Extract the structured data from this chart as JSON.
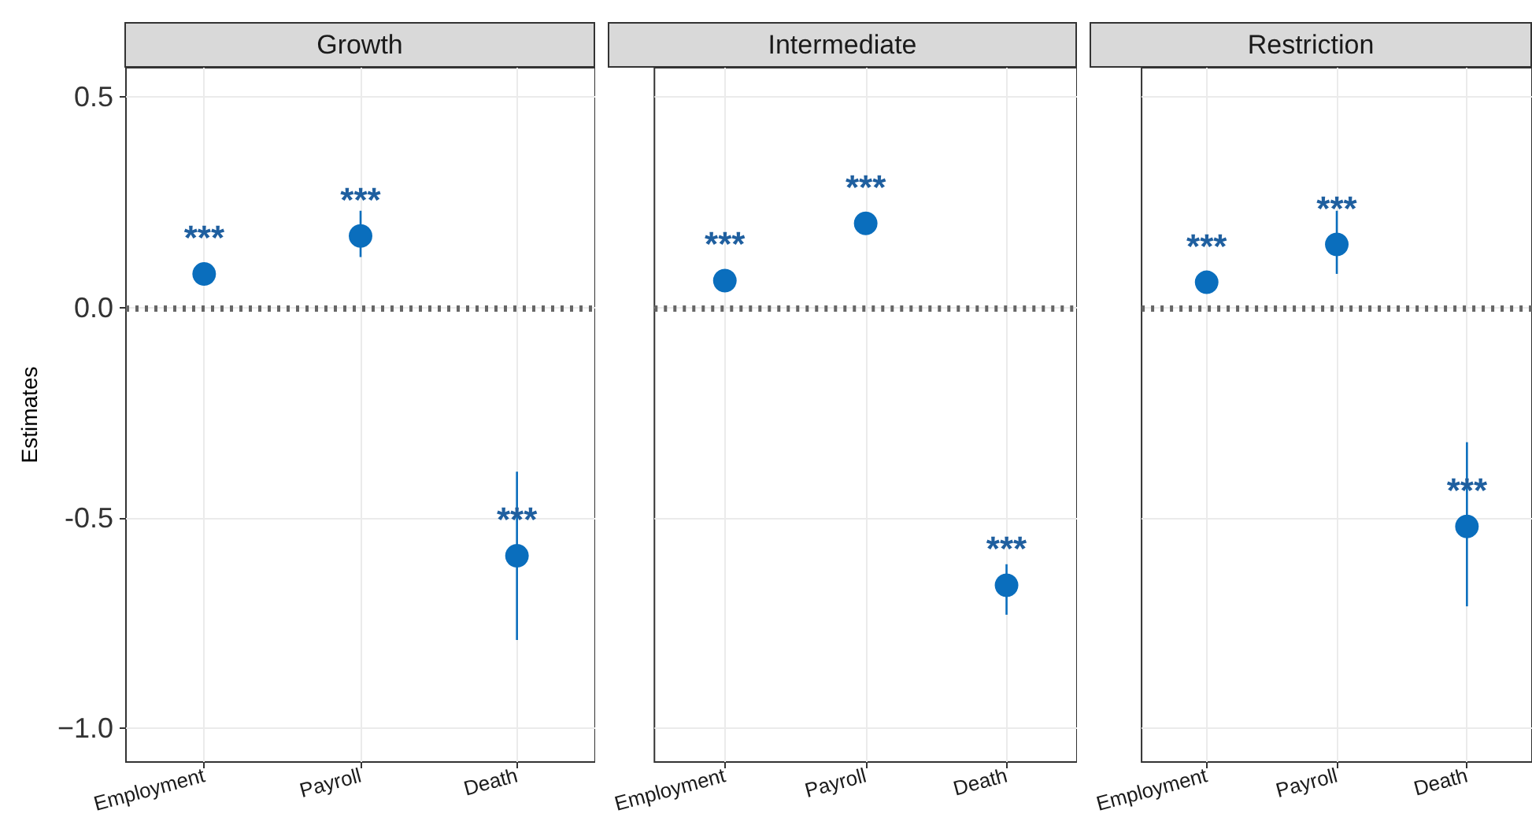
{
  "chart_data": [
    {
      "type": "scatter",
      "title": "Growth",
      "ylabel": "Estimates",
      "categories": [
        "Employment",
        "Payroll",
        "Death"
      ],
      "values": [
        0.08,
        0.17,
        -0.59
      ],
      "errors": [
        null,
        [
          0.12,
          0.23
        ],
        [
          -0.79,
          -0.39
        ]
      ],
      "color": "#0a6ebd",
      "ylim": [
        -1.08,
        0.57
      ],
      "yticks": [
        {
          "value": -1.0,
          "label": "−1.0"
        },
        {
          "value": -0.5,
          "label": "-0.5"
        },
        {
          "value": 0.0,
          "label": "0.0"
        },
        {
          "value": 0.5,
          "label": "0.5"
        }
      ],
      "grid": true,
      "marker": "circle",
      "ref_lines": [
        {
          "axis": "y",
          "value": 0,
          "color": "#666666",
          "line_style": "dotted"
        }
      ],
      "annotations": [
        {
          "text": "***",
          "x": "Employment",
          "y": 0.08
        },
        {
          "text": "***",
          "x": "Payroll",
          "y": 0.17
        },
        {
          "text": "***",
          "x": "Death",
          "y": -0.59
        }
      ]
    },
    {
      "type": "scatter",
      "title": "Intermediate",
      "categories": [
        "Employment",
        "Payroll",
        "Death"
      ],
      "values": [
        0.064,
        0.2,
        -0.66
      ],
      "errors": [
        null,
        null,
        [
          -0.73,
          -0.61
        ]
      ],
      "color": "#0a6ebd",
      "ylim": [
        -1.08,
        0.57
      ],
      "yticks": [
        -1.0,
        -0.5,
        0.0,
        0.5
      ],
      "grid": true,
      "marker": "circle",
      "tick_labels": "x",
      "ref_lines": [
        {
          "axis": "y",
          "value": 0,
          "color": "#666666",
          "line_style": "dotted"
        }
      ],
      "annotations": [
        {
          "text": "***",
          "x": "Employment",
          "y": 0.064
        },
        {
          "text": "***",
          "x": "Payroll",
          "y": 0.2
        },
        {
          "text": "***",
          "x": "Death",
          "y": -0.66
        }
      ]
    },
    {
      "type": "scatter",
      "title": "Restriction",
      "categories": [
        "Employment",
        "Payroll",
        "Death"
      ],
      "values": [
        0.06,
        0.15,
        -0.52
      ],
      "errors": [
        null,
        [
          0.08,
          0.23
        ],
        [
          -0.71,
          -0.32
        ]
      ],
      "color": "#0a6ebd",
      "ylim": [
        -1.08,
        0.57
      ],
      "yticks": [
        -1.0,
        -0.5,
        0.0,
        0.5
      ],
      "grid": true,
      "marker": "circle",
      "tick_labels": "x",
      "ref_lines": [
        {
          "axis": "y",
          "value": 0,
          "color": "#666666",
          "line_style": "dotted"
        }
      ],
      "annotations": [
        {
          "text": "***",
          "x": "Employment",
          "y": 0.06
        },
        {
          "text": "***",
          "x": "Payroll",
          "y": 0.15
        },
        {
          "text": "***",
          "x": "Death",
          "y": -0.52
        }
      ]
    }
  ]
}
